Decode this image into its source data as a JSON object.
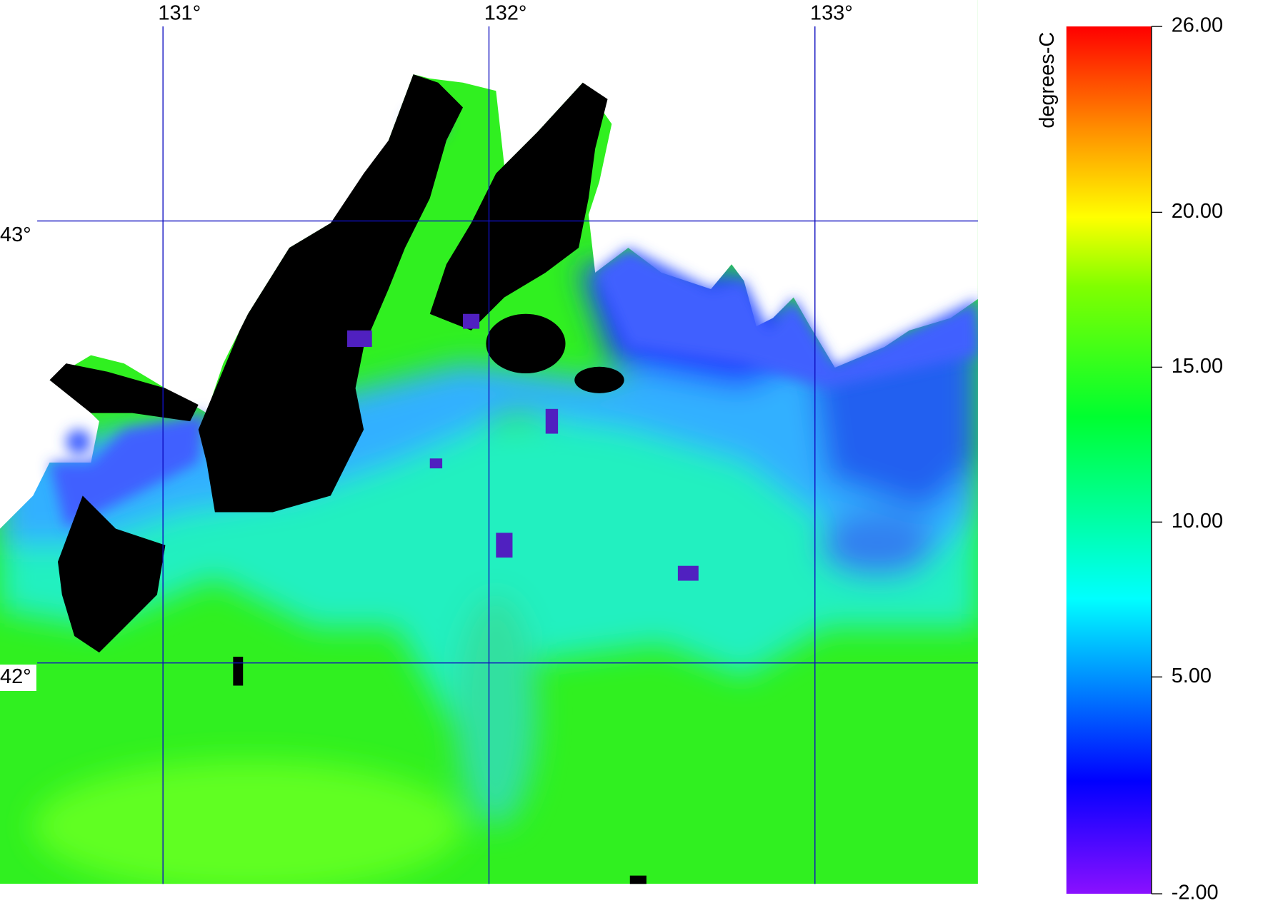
{
  "map": {
    "xlim": [
      130.5,
      133.5
    ],
    "ylim": [
      41.5,
      43.5
    ],
    "lon_ticks": [
      {
        "value": 131,
        "label": "131°"
      },
      {
        "value": 132,
        "label": "132°"
      },
      {
        "value": 133,
        "label": "133°"
      }
    ],
    "lat_ticks": [
      {
        "value": 43,
        "label": "43°"
      },
      {
        "value": 42,
        "label": "42°"
      }
    ],
    "colorbar": {
      "label": "degrees-C",
      "range": [
        -2,
        26
      ],
      "ticks": [
        {
          "value": 26,
          "label": "26.00"
        },
        {
          "value": 20,
          "label": "20.00"
        },
        {
          "value": 15,
          "label": "15.00"
        },
        {
          "value": 10,
          "label": "10.00"
        },
        {
          "value": 5,
          "label": "5.00"
        },
        {
          "value": -2,
          "label": "-2.00"
        }
      ]
    }
  }
}
